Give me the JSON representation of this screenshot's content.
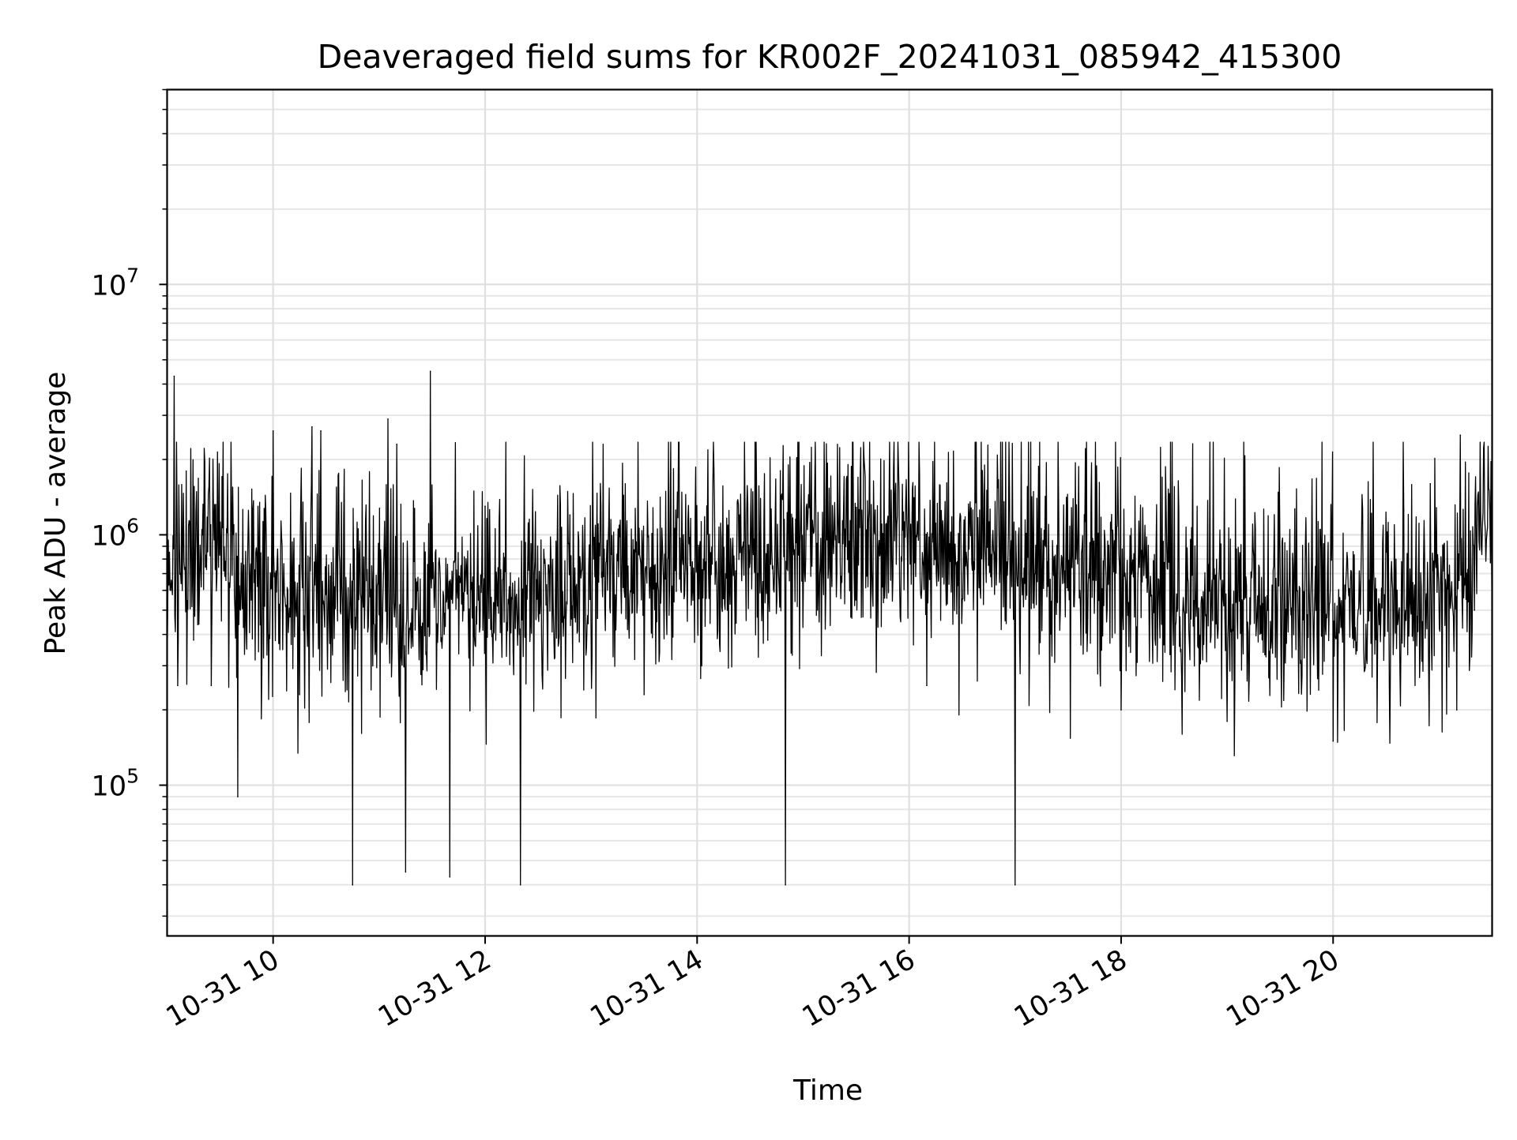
{
  "chart_data": {
    "type": "line",
    "title": "Deaveraged field sums for KR002F_20241031_085942_415300",
    "xlabel": "Time",
    "ylabel": "Peak ADU - average",
    "x_axis": {
      "kind": "datetime",
      "range": [
        "2024-10-31T09:00",
        "2024-10-31T21:30"
      ],
      "ticks": [
        "2024-10-31T10:00",
        "2024-10-31T12:00",
        "2024-10-31T14:00",
        "2024-10-31T16:00",
        "2024-10-31T18:00",
        "2024-10-31T20:00"
      ],
      "tick_labels": [
        "10-31 10",
        "10-31 12",
        "10-31 14",
        "10-31 16",
        "10-31 18",
        "10-31 20"
      ],
      "tick_label_rotation": "30 degrees"
    },
    "y_axis": {
      "scale": "log",
      "range": [
        25000,
        60000000
      ],
      "ticks": [
        100000,
        1000000,
        10000000
      ],
      "tick_labels": [
        {
          "base": "10",
          "exp": "5"
        },
        {
          "base": "10",
          "exp": "6"
        },
        {
          "base": "10",
          "exp": "7"
        }
      ]
    },
    "grid": "major and minor, light gray",
    "legend": "none",
    "series": [
      {
        "color": "#000000",
        "points": [
          [
            "2024-10-31T09:00",
            300000
          ],
          [
            "2024-10-31T09:02",
            600000
          ],
          [
            "2024-10-31T09:04",
            4300000
          ],
          [
            "2024-10-31T09:06",
            250000
          ],
          [
            "2024-10-31T09:15",
            380000
          ],
          [
            "2024-10-31T09:20",
            1000000
          ],
          [
            "2024-10-31T09:25",
            250000
          ],
          [
            "2024-10-31T09:40",
            90000
          ],
          [
            "2024-10-31T10:00",
            2600000
          ],
          [
            "2024-10-31T10:15",
            230000
          ],
          [
            "2024-10-31T10:22",
            2700000
          ],
          [
            "2024-10-31T10:27",
            2600000
          ],
          [
            "2024-10-31T10:45",
            40000
          ],
          [
            "2024-10-31T11:05",
            2900000
          ],
          [
            "2024-10-31T11:10",
            2300000
          ],
          [
            "2024-10-31T11:15",
            45000
          ],
          [
            "2024-10-31T11:29",
            4500000
          ],
          [
            "2024-10-31T11:40",
            43000
          ],
          [
            "2024-10-31T12:00",
            1300000
          ],
          [
            "2024-10-31T12:20",
            40000
          ],
          [
            "2024-10-31T12:48",
            1200000
          ],
          [
            "2024-10-31T13:30",
            230000
          ],
          [
            "2024-10-31T14:40",
            380000
          ],
          [
            "2024-10-31T14:50",
            40000
          ],
          [
            "2024-10-31T15:05",
            750000
          ],
          [
            "2024-10-31T16:10",
            250000
          ],
          [
            "2024-10-31T17:00",
            40000
          ],
          [
            "2024-10-31T17:30",
            600000
          ],
          [
            "2024-10-31T18:00",
            200000
          ],
          [
            "2024-10-31T19:00",
            180000
          ],
          [
            "2024-10-31T20:00",
            150000
          ],
          [
            "2024-10-31T20:40",
            1250000
          ],
          [
            "2024-10-31T20:55",
            1600000
          ],
          [
            "2024-10-31T21:10",
            200000
          ],
          [
            "2024-10-31T21:12",
            2500000
          ],
          [
            "2024-10-31T21:20",
            500000
          ],
          [
            "2024-10-31T21:30",
            450000
          ]
        ]
      }
    ]
  }
}
